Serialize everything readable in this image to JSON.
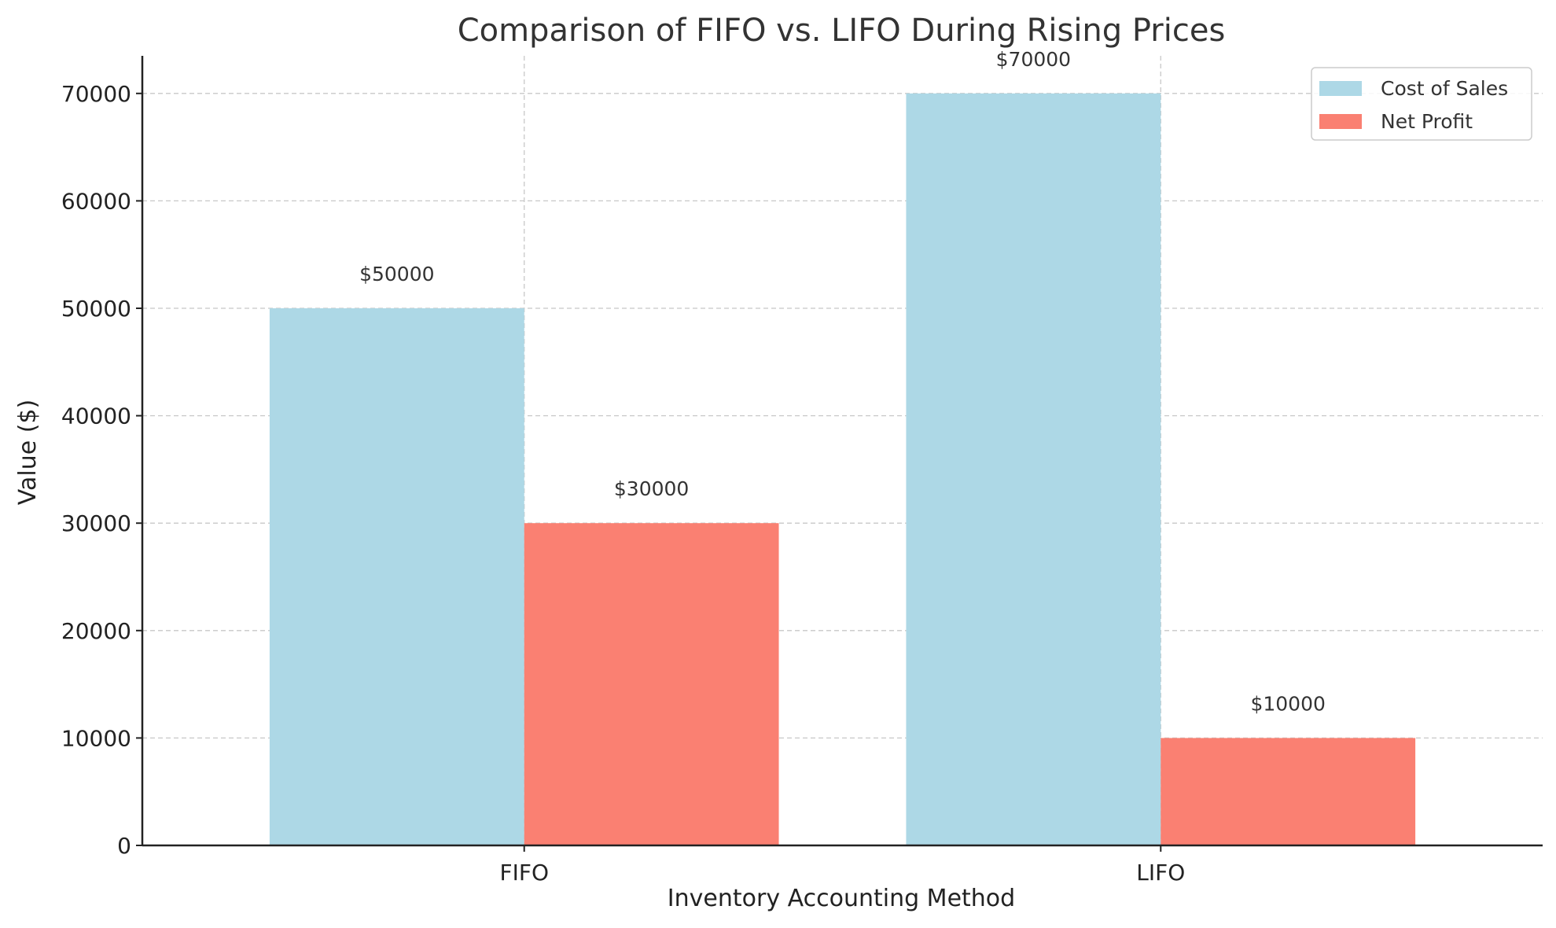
{
  "chart_data": {
    "type": "bar",
    "title": "Comparison of FIFO vs. LIFO During Rising Prices",
    "xlabel": "Inventory Accounting Method",
    "ylabel": "Value ($)",
    "categories": [
      "FIFO",
      "LIFO"
    ],
    "series": [
      {
        "name": "Cost of Sales",
        "values": [
          50000,
          70000
        ],
        "color": "#add8e6",
        "labels": [
          "$50000",
          "$70000"
        ]
      },
      {
        "name": "Net Profit",
        "values": [
          30000,
          10000
        ],
        "color": "#fa8072",
        "labels": [
          "$30000",
          "$10000"
        ]
      }
    ],
    "ylim": [
      0,
      73500
    ],
    "yticks": [
      0,
      10000,
      20000,
      30000,
      40000,
      50000,
      60000,
      70000
    ],
    "ytick_labels": [
      "0",
      "10000",
      "20000",
      "30000",
      "40000",
      "50000",
      "60000",
      "70000"
    ],
    "grid": true,
    "legend_position": "top-right"
  }
}
